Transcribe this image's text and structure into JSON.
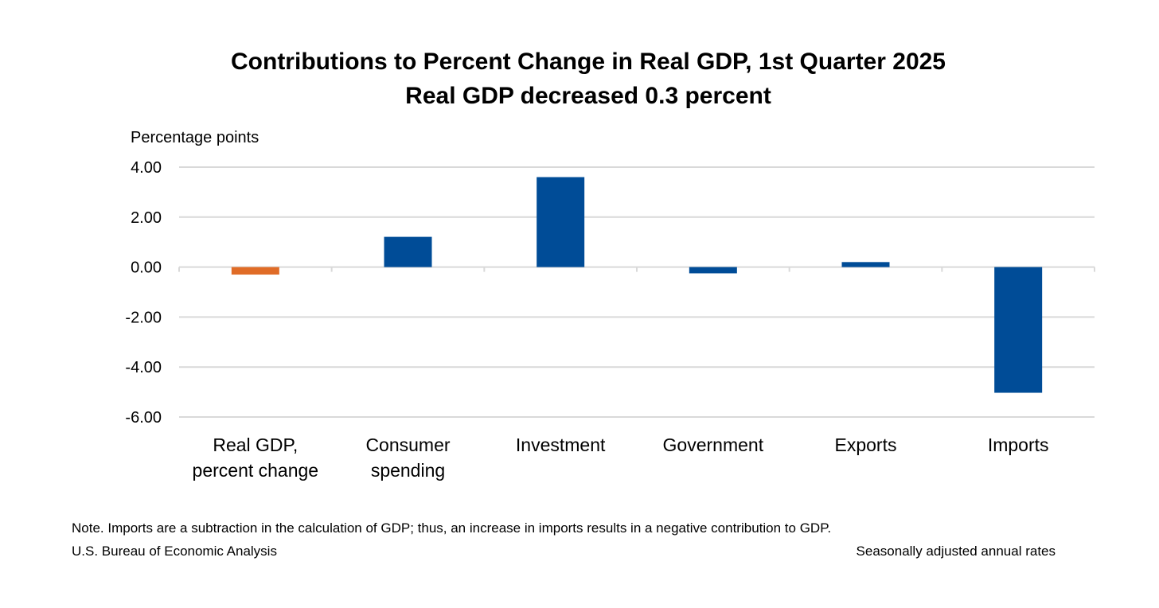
{
  "chart_data": {
    "type": "bar",
    "title": "Contributions to Percent Change in Real GDP, 1st Quarter 2025",
    "subtitle": "Real GDP decreased 0.3 percent",
    "ylabel": "Percentage points",
    "xlabel": "",
    "categories": [
      [
        "Real GDP,",
        "percent change"
      ],
      [
        "Consumer",
        "spending"
      ],
      [
        "Investment"
      ],
      [
        "Government"
      ],
      [
        "Exports"
      ],
      [
        "Imports"
      ]
    ],
    "values": [
      -0.3,
      1.21,
      3.6,
      -0.25,
      0.2,
      -5.03
    ],
    "bar_colors": [
      "#E06C27",
      "#004C97",
      "#004C97",
      "#004C97",
      "#004C97",
      "#004C97"
    ],
    "ylim": [
      -6,
      4
    ],
    "yticks": [
      4,
      2,
      0,
      -2,
      -4,
      -6
    ],
    "ytick_labels": [
      "4.00",
      "2.00",
      "0.00",
      "-2.00",
      "-4.00",
      "-6.00"
    ],
    "grid": true,
    "gridline_color": "#D9D9D9",
    "legend": "none"
  },
  "footer": {
    "note": "Note. Imports are a subtraction in the calculation of GDP; thus, an increase in imports results in a negative contribution to GDP.",
    "source": "U.S. Bureau of Economic Analysis",
    "rates": "Seasonally adjusted annual rates"
  }
}
